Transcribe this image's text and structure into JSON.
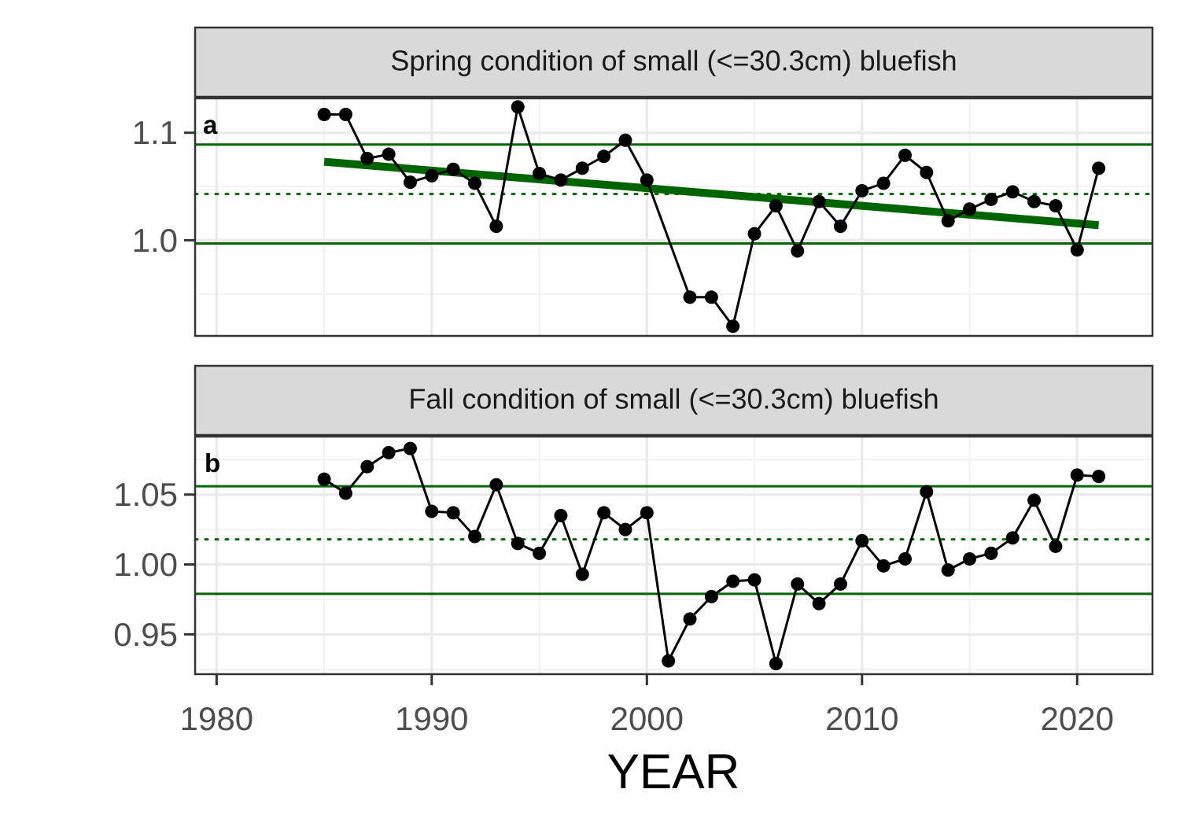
{
  "chart_data": [
    {
      "type": "line",
      "panel_tag": "a",
      "strip_title": "Spring condition of small (<=30.3cm) bluefish",
      "xlabel": "YEAR",
      "ylabel": "",
      "xlim": [
        1979,
        2023.5
      ],
      "ylim": [
        0.911,
        1.132
      ],
      "x_ticks": [
        1980,
        1990,
        2000,
        2010,
        2020
      ],
      "y_ticks": [
        1.0,
        1.1
      ],
      "y_tick_labels": [
        "1.0",
        "1.1"
      ],
      "x": [
        1985,
        1986,
        1987,
        1988,
        1989,
        1990,
        1991,
        1992,
        1993,
        1994,
        1995,
        1996,
        1997,
        1998,
        1999,
        2000,
        2002,
        2003,
        2004,
        2005,
        2006,
        2007,
        2008,
        2009,
        2010,
        2011,
        2012,
        2013,
        2014,
        2015,
        2016,
        2017,
        2018,
        2019,
        2020,
        2021
      ],
      "values": [
        1.117,
        1.117,
        1.076,
        1.08,
        1.054,
        1.06,
        1.066,
        1.053,
        1.013,
        1.124,
        1.062,
        1.056,
        1.067,
        1.078,
        1.093,
        1.056,
        0.947,
        0.947,
        0.92,
        1.006,
        1.032,
        0.99,
        1.036,
        1.013,
        1.046,
        1.053,
        1.079,
        1.063,
        1.018,
        1.029,
        1.038,
        1.045,
        1.036,
        1.032,
        0.991,
        1.067
      ],
      "reference_lines": {
        "upper": 1.089,
        "mean": 1.043,
        "lower": 0.997,
        "color": "#006400"
      },
      "trend": {
        "x": [
          1985,
          2021
        ],
        "y": [
          1.073,
          1.014
        ],
        "color": "#006400"
      },
      "grid": true,
      "legend": "none"
    },
    {
      "type": "line",
      "panel_tag": "b",
      "strip_title": "Fall condition of small (<=30.3cm) bluefish",
      "xlabel": "YEAR",
      "ylabel": "",
      "xlim": [
        1979,
        2023.5
      ],
      "ylim": [
        0.9215,
        1.0915
      ],
      "x_ticks": [
        1980,
        1990,
        2000,
        2010,
        2020
      ],
      "y_ticks": [
        0.95,
        1.0,
        1.05
      ],
      "y_tick_labels": [
        "0.95",
        "1.00",
        "1.05"
      ],
      "x": [
        1985,
        1986,
        1987,
        1988,
        1989,
        1990,
        1991,
        1992,
        1993,
        1994,
        1995,
        1996,
        1997,
        1998,
        1999,
        2000,
        2001,
        2002,
        2003,
        2004,
        2005,
        2006,
        2007,
        2008,
        2009,
        2010,
        2011,
        2012,
        2013,
        2014,
        2015,
        2016,
        2017,
        2018,
        2019,
        2020,
        2021
      ],
      "values": [
        1.061,
        1.051,
        1.07,
        1.08,
        1.083,
        1.038,
        1.037,
        1.02,
        1.057,
        1.015,
        1.008,
        1.035,
        0.993,
        1.037,
        1.025,
        1.037,
        0.931,
        0.961,
        0.977,
        0.988,
        0.989,
        0.929,
        0.986,
        0.972,
        0.986,
        1.017,
        0.999,
        1.004,
        1.052,
        0.996,
        1.004,
        1.008,
        1.019,
        1.046,
        1.013,
        1.064,
        1.063
      ],
      "reference_lines": {
        "upper": 1.056,
        "mean": 1.018,
        "lower": 0.979,
        "color": "#006400"
      },
      "grid": true,
      "legend": "none"
    }
  ],
  "colors": {
    "series": "#000000",
    "reference": "#006400",
    "strip_fill": "#d9d9d9",
    "panel_border": "#333333",
    "grid": "#ebebeb"
  }
}
